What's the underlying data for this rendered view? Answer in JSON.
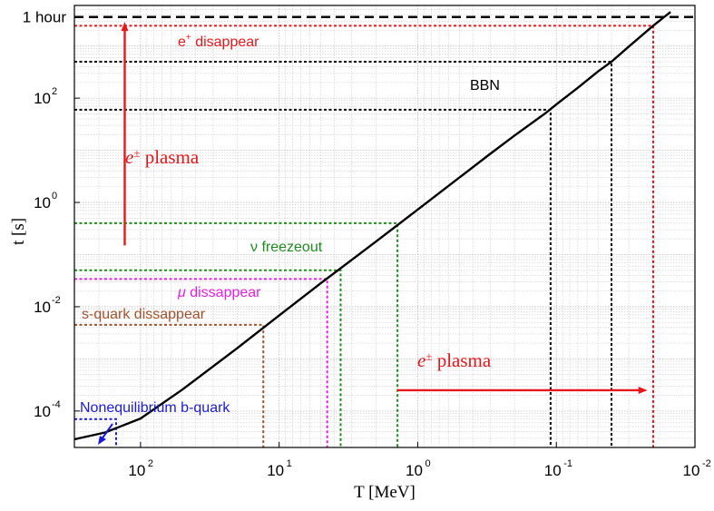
{
  "chart_data": {
    "type": "line",
    "xlabel": "T  [MeV]",
    "ylabel": "t  [s]",
    "xscale": "log",
    "yscale": "log",
    "x_reversed": true,
    "xlim": [
      300,
      0.01
    ],
    "ylim": [
      2e-05,
      6000
    ],
    "grid": true,
    "x_ticks": [
      {
        "value": 100,
        "base": "10",
        "exp": "2"
      },
      {
        "value": 10,
        "base": "10",
        "exp": "1"
      },
      {
        "value": 1,
        "base": "10",
        "exp": "0"
      },
      {
        "value": 0.1,
        "base": "10",
        "exp": "-1"
      },
      {
        "value": 0.01,
        "base": "10",
        "exp": "-2"
      }
    ],
    "y_ticks": [
      {
        "value": 0.0001,
        "base": "10",
        "exp": "-4"
      },
      {
        "value": 0.01,
        "base": "10",
        "exp": "-2"
      },
      {
        "value": 1,
        "base": "10",
        "exp": "0"
      },
      {
        "value": 100,
        "base": "10",
        "exp": "2"
      },
      {
        "value": 3600,
        "text": "1 hour"
      }
    ],
    "series": [
      {
        "color": "#000000",
        "points": [
          [
            300,
            2.87e-05
          ],
          [
            180,
            3.87e-05
          ],
          [
            100,
            7.17e-05
          ],
          [
            50,
            0.000257
          ],
          [
            20,
            0.00162
          ],
          [
            10,
            0.0068
          ],
          [
            5,
            0.0284
          ],
          [
            2,
            0.178
          ],
          [
            1,
            0.729
          ],
          [
            0.5,
            3.0
          ],
          [
            0.3,
            8.54
          ],
          [
            0.2,
            19.2
          ],
          [
            0.12,
            51.4
          ],
          [
            0.1,
            75.7
          ],
          [
            0.07,
            158
          ],
          [
            0.05,
            325
          ],
          [
            0.04,
            499
          ],
          [
            0.03,
            976
          ],
          [
            0.02,
            2450
          ],
          [
            0.015,
            4500
          ]
        ]
      }
    ],
    "markers": [
      {
        "name": "one-hour",
        "t": 3600,
        "color": "#000000",
        "dash": "long"
      },
      {
        "name": "e-disappear",
        "T": 0.02,
        "t": 2450,
        "color": "#e8171b"
      },
      {
        "name": "bbn-upper",
        "T": 0.04,
        "t": 499,
        "color": "#000000"
      },
      {
        "name": "bbn-lower",
        "T": 0.11,
        "t": 60,
        "color": "#000000"
      },
      {
        "name": "nu-freezeout",
        "T": 1.4,
        "t": 0.4,
        "color": "#1e8c1e"
      },
      {
        "name": "mu-upper",
        "T": 3.6,
        "t": 0.05,
        "color": "#1e8c1e"
      },
      {
        "name": "mu-disappear",
        "T": 4.5,
        "t": 0.034,
        "color": "#e61ee6"
      },
      {
        "name": "s-quark",
        "T": 13,
        "t": 0.0045,
        "color": "#a0522d"
      },
      {
        "name": "b-quark",
        "T": 150,
        "t": 7e-05,
        "color": "#1a1adc"
      }
    ],
    "annotations": [
      {
        "name": "e-disappear",
        "text": "e",
        "sup": "+",
        "rest": " disappear",
        "color": "#e8171b"
      },
      {
        "name": "bbn",
        "text": "BBN",
        "color": "#000000"
      },
      {
        "name": "plasma-upper",
        "text": "e",
        "sup": "±",
        "rest": " plasma",
        "color": "#e8171b"
      },
      {
        "name": "nu-freezeout",
        "text": "ν",
        "rest": " freezeout",
        "color": "#1e8c1e"
      },
      {
        "name": "mu-disappear",
        "text": "μ",
        "rest": " dissappear",
        "color": "#e61ee6"
      },
      {
        "name": "s-quark",
        "text": "s-quark dissappear",
        "color": "#a0522d"
      },
      {
        "name": "plasma-lower",
        "text": "e",
        "sup": "±",
        "rest": " plasma",
        "color": "#e8171b"
      },
      {
        "name": "b-quark",
        "text": "Nonequilibrium b-quark",
        "color": "#1a1adc"
      }
    ],
    "arrows": [
      {
        "name": "plasma-up-arrow",
        "T": 130,
        "t_from": 0.15,
        "t_to": 2900,
        "color": "#e8171b"
      },
      {
        "name": "plasma-right-arrow",
        "t": 0.00025,
        "T_from": 1.4,
        "T_to": 0.022,
        "color": "#e8171b"
      },
      {
        "name": "b-quark-pointer",
        "color": "#1a1adc"
      }
    ]
  }
}
